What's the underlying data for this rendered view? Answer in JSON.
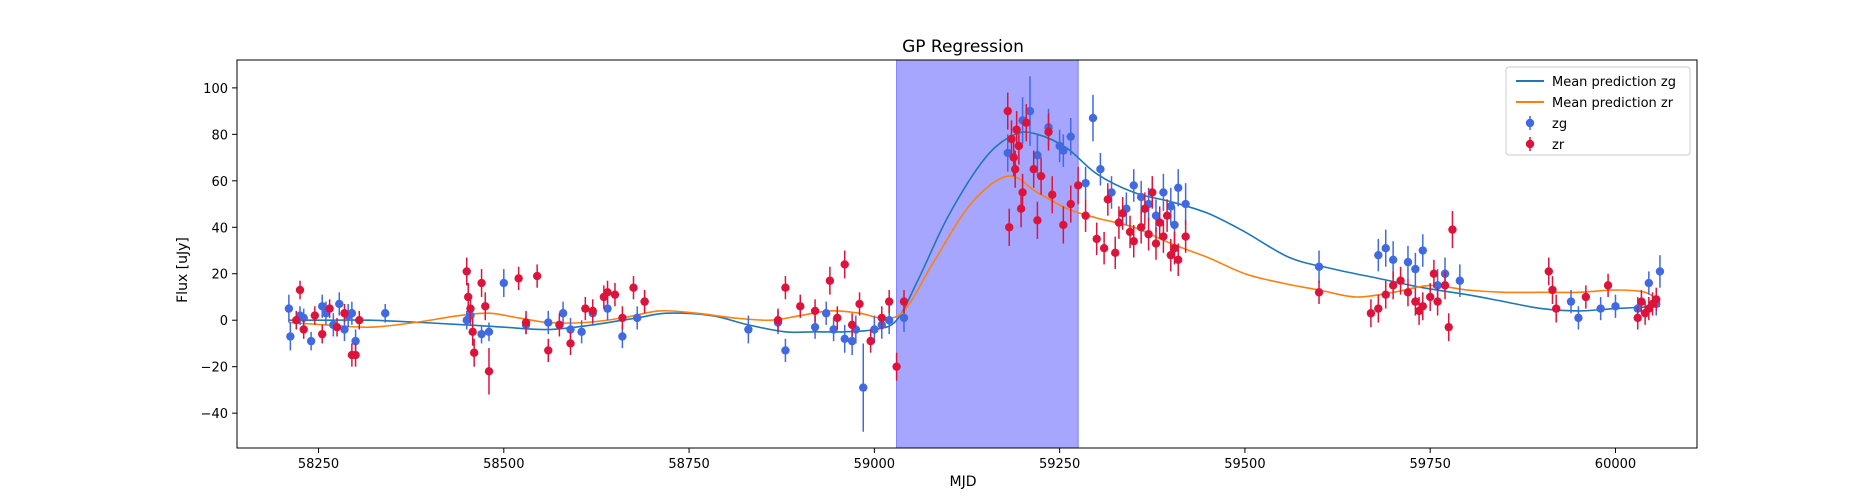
{
  "chart_data": {
    "type": "scatter",
    "title": "GP Regression",
    "xlabel": "MJD",
    "ylabel": "Flux [uJy]",
    "xlim": [
      58140,
      60110
    ],
    "ylim": [
      -55,
      112
    ],
    "xticks": [
      58250,
      58500,
      58750,
      59000,
      59250,
      59500,
      59750,
      60000
    ],
    "yticks": [
      -40,
      -20,
      0,
      20,
      40,
      60,
      80,
      100
    ],
    "grid": false,
    "legend_position": "top-right",
    "highlight_span": {
      "x0": 59030,
      "x1": 59275,
      "color": "#a6a6ff"
    },
    "lines": [
      {
        "name": "Mean prediction zg",
        "color": "#1f77b4",
        "x": [
          58210,
          58260,
          58320,
          58390,
          58450,
          58500,
          58560,
          58620,
          58680,
          58720,
          58780,
          58830,
          58880,
          58920,
          58960,
          59000,
          59030,
          59060,
          59100,
          59150,
          59190,
          59220,
          59260,
          59300,
          59350,
          59400,
          59450,
          59500,
          59560,
          59620,
          59680,
          59740,
          59800,
          59850,
          59900,
          59950,
          60000,
          60060
        ],
        "y": [
          0,
          0,
          0,
          -1,
          -2,
          -3,
          -4,
          -2,
          1,
          3,
          2,
          -2,
          -5,
          -5,
          -5,
          -4,
          0,
          18,
          45,
          70,
          80,
          80,
          74,
          63,
          55,
          51,
          46,
          38,
          27,
          22,
          18,
          14,
          11,
          8,
          5,
          4,
          5,
          6
        ]
      },
      {
        "name": "Mean prediction zr",
        "color": "#ff7f0e",
        "x": [
          58210,
          58260,
          58320,
          58380,
          58440,
          58480,
          58520,
          58560,
          58610,
          58660,
          58710,
          58760,
          58810,
          58860,
          58900,
          58940,
          58980,
          59010,
          59040,
          59080,
          59130,
          59180,
          59220,
          59260,
          59300,
          59350,
          59400,
          59450,
          59500,
          59550,
          59600,
          59650,
          59700,
          59750,
          59800,
          59850,
          59900,
          59950,
          60000,
          60040,
          60060
        ],
        "y": [
          -1,
          -2,
          -3,
          -1,
          2,
          3,
          1,
          -1,
          -1,
          1,
          4,
          3,
          1,
          0,
          2,
          4,
          3,
          1,
          4,
          25,
          50,
          62,
          55,
          48,
          44,
          40,
          33,
          27,
          20,
          16,
          13,
          10,
          12,
          15,
          13,
          12,
          12,
          12,
          13,
          12,
          8
        ]
      }
    ],
    "series": [
      {
        "name": "zg",
        "color": "#4169e1",
        "x": [
          58210,
          58212,
          58225,
          58230,
          58240,
          58255,
          58260,
          58270,
          58278,
          58285,
          58290,
          58295,
          58300,
          58340,
          58450,
          58455,
          58470,
          58480,
          58500,
          58530,
          58560,
          58580,
          58590,
          58605,
          58620,
          58640,
          58660,
          58680,
          58690,
          58830,
          58870,
          58880,
          58920,
          58935,
          58945,
          58960,
          58970,
          58975,
          58985,
          59000,
          59010,
          59020,
          59040,
          59180,
          59200,
          59210,
          59220,
          59235,
          59250,
          59255,
          59265,
          59285,
          59295,
          59305,
          59320,
          59340,
          59350,
          59360,
          59370,
          59380,
          59390,
          59400,
          59405,
          59410,
          59420,
          59600,
          59680,
          59690,
          59700,
          59720,
          59730,
          59740,
          59760,
          59770,
          59790,
          59940,
          59950,
          59980,
          60000,
          60030,
          60045,
          60055,
          60060
        ],
        "y": [
          5,
          -7,
          2,
          1,
          -9,
          6,
          3,
          -2,
          7,
          -4,
          2,
          3,
          -9,
          3,
          0,
          2,
          -6,
          -5,
          16,
          -2,
          -1,
          3,
          -4,
          -5,
          3,
          5,
          -7,
          1,
          8,
          -4,
          -1,
          -13,
          -3,
          3,
          -4,
          -8,
          -9,
          -4,
          -29,
          -4,
          -2,
          0,
          1,
          72,
          86,
          90,
          71,
          83,
          75,
          73,
          79,
          59,
          87,
          65,
          55,
          48,
          58,
          53,
          50,
          45,
          55,
          49,
          41,
          57,
          50,
          23,
          28,
          31,
          26,
          25,
          22,
          30,
          15,
          20,
          17,
          8,
          1,
          5,
          6,
          5,
          16,
          7,
          21
        ],
        "err": [
          6,
          6,
          4,
          4,
          4,
          5,
          5,
          5,
          5,
          5,
          5,
          5,
          5,
          4,
          4,
          4,
          4,
          4,
          6,
          4,
          5,
          5,
          5,
          5,
          5,
          5,
          5,
          5,
          5,
          6,
          5,
          5,
          5,
          5,
          5,
          6,
          6,
          6,
          19,
          6,
          6,
          6,
          6,
          8,
          10,
          15,
          9,
          8,
          7,
          7,
          8,
          7,
          10,
          7,
          7,
          7,
          7,
          7,
          7,
          7,
          8,
          8,
          8,
          8,
          9,
          7,
          7,
          8,
          8,
          7,
          7,
          7,
          7,
          7,
          7,
          5,
          5,
          5,
          5,
          5,
          5,
          5,
          7
        ]
      },
      {
        "name": "zr",
        "color": "#dc143c",
        "x": [
          58220,
          58225,
          58230,
          58245,
          58255,
          58265,
          58275,
          58285,
          58295,
          58300,
          58305,
          58450,
          58452,
          58455,
          58458,
          58460,
          58470,
          58475,
          58480,
          58520,
          58530,
          58545,
          58560,
          58575,
          58590,
          58610,
          58620,
          58635,
          58640,
          58650,
          58660,
          58675,
          58690,
          58870,
          58880,
          58900,
          58920,
          58940,
          58950,
          58960,
          58970,
          58980,
          58995,
          59010,
          59020,
          59030,
          59040,
          59180,
          59182,
          59185,
          59188,
          59190,
          59192,
          59195,
          59198,
          59200,
          59205,
          59215,
          59220,
          59225,
          59235,
          59240,
          59255,
          59265,
          59275,
          59285,
          59300,
          59310,
          59315,
          59325,
          59330,
          59335,
          59345,
          59350,
          59360,
          59365,
          59370,
          59375,
          59380,
          59385,
          59390,
          59395,
          59400,
          59405,
          59410,
          59420,
          59600,
          59670,
          59680,
          59690,
          59700,
          59710,
          59720,
          59730,
          59735,
          59740,
          59750,
          59755,
          59760,
          59770,
          59775,
          59780,
          59910,
          59915,
          59920,
          59960,
          59990,
          60030,
          60035,
          60040,
          60045,
          60050,
          60055
        ],
        "y": [
          0,
          13,
          -4,
          2,
          -6,
          5,
          -3,
          3,
          -15,
          -15,
          0,
          21,
          10,
          5,
          -5,
          -14,
          16,
          6,
          -22,
          18,
          -1,
          19,
          -13,
          -2,
          -10,
          5,
          4,
          10,
          12,
          11,
          1,
          14,
          8,
          0,
          14,
          6,
          4,
          17,
          1,
          24,
          -2,
          7,
          -9,
          1,
          8,
          -20,
          8,
          90,
          40,
          78,
          70,
          65,
          82,
          75,
          48,
          55,
          85,
          65,
          43,
          62,
          81,
          54,
          41,
          50,
          58,
          45,
          35,
          31,
          52,
          29,
          42,
          46,
          38,
          34,
          40,
          48,
          37,
          55,
          33,
          42,
          36,
          45,
          28,
          31,
          26,
          36,
          12,
          3,
          5,
          11,
          15,
          17,
          12,
          8,
          4,
          6,
          10,
          20,
          8,
          15,
          -3,
          39,
          21,
          13,
          5,
          10,
          15,
          1,
          8,
          3,
          5,
          7,
          9
        ],
        "err": [
          4,
          4,
          4,
          4,
          4,
          4,
          4,
          4,
          5,
          5,
          4,
          6,
          6,
          6,
          6,
          6,
          6,
          6,
          10,
          5,
          5,
          5,
          5,
          5,
          5,
          5,
          5,
          5,
          5,
          5,
          5,
          5,
          5,
          5,
          5,
          5,
          5,
          6,
          5,
          6,
          5,
          5,
          5,
          5,
          5,
          6,
          5,
          8,
          8,
          8,
          8,
          8,
          8,
          8,
          8,
          8,
          8,
          8,
          8,
          8,
          8,
          8,
          8,
          8,
          8,
          7,
          7,
          7,
          7,
          7,
          7,
          7,
          7,
          7,
          7,
          7,
          7,
          7,
          7,
          7,
          7,
          7,
          7,
          7,
          7,
          7,
          5,
          6,
          6,
          6,
          6,
          6,
          6,
          6,
          6,
          6,
          6,
          6,
          6,
          6,
          6,
          8,
          6,
          6,
          6,
          5,
          5,
          5,
          5,
          5,
          5,
          5,
          5
        ]
      }
    ],
    "legend": [
      {
        "label": "Mean prediction zg",
        "kind": "line",
        "color": "#1f77b4"
      },
      {
        "label": "Mean prediction zr",
        "kind": "line",
        "color": "#ff7f0e"
      },
      {
        "label": "zg",
        "kind": "errorpoint",
        "color": "#4169e1"
      },
      {
        "label": "zr",
        "kind": "errorpoint",
        "color": "#dc143c"
      }
    ]
  }
}
